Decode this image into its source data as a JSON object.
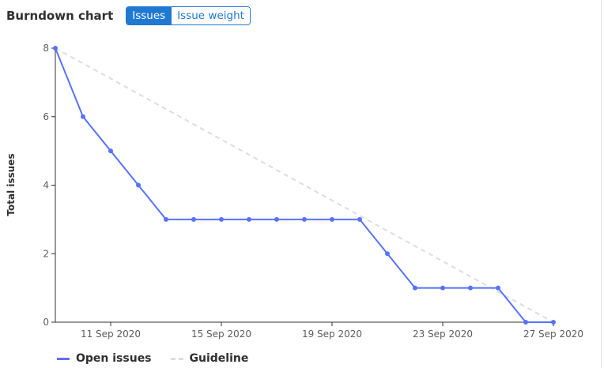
{
  "header": {
    "title": "Burndown chart",
    "toggle": [
      {
        "label": "Issues",
        "active": true
      },
      {
        "label": "Issue weight",
        "active": false
      }
    ]
  },
  "colors": {
    "series": "#5772ff",
    "guideline": "#dddddd",
    "accent": "#1f78d1"
  },
  "chart_data": {
    "type": "line",
    "ylabel": "Total issues",
    "ylim": [
      0,
      8
    ],
    "yticks": [
      0,
      2,
      4,
      6,
      8
    ],
    "xlim": [
      "2020-09-09",
      "2020-09-27"
    ],
    "xticks": [
      {
        "date": "2020-09-11",
        "label": "11 Sep 2020"
      },
      {
        "date": "2020-09-15",
        "label": "15 Sep 2020"
      },
      {
        "date": "2020-09-19",
        "label": "19 Sep 2020"
      },
      {
        "date": "2020-09-23",
        "label": "23 Sep 2020"
      },
      {
        "date": "2020-09-27",
        "label": "27 Sep 2020"
      }
    ],
    "legend_position": "bottom-left",
    "grid": false,
    "series": [
      {
        "name": "Open issues",
        "style": "solid",
        "points": [
          {
            "date": "2020-09-09",
            "y": 8
          },
          {
            "date": "2020-09-10",
            "y": 6
          },
          {
            "date": "2020-09-11",
            "y": 5
          },
          {
            "date": "2020-09-12",
            "y": 4
          },
          {
            "date": "2020-09-13",
            "y": 3
          },
          {
            "date": "2020-09-14",
            "y": 3
          },
          {
            "date": "2020-09-15",
            "y": 3
          },
          {
            "date": "2020-09-16",
            "y": 3
          },
          {
            "date": "2020-09-17",
            "y": 3
          },
          {
            "date": "2020-09-18",
            "y": 3
          },
          {
            "date": "2020-09-19",
            "y": 3
          },
          {
            "date": "2020-09-20",
            "y": 3
          },
          {
            "date": "2020-09-21",
            "y": 2
          },
          {
            "date": "2020-09-22",
            "y": 1
          },
          {
            "date": "2020-09-23",
            "y": 1
          },
          {
            "date": "2020-09-24",
            "y": 1
          },
          {
            "date": "2020-09-25",
            "y": 1
          },
          {
            "date": "2020-09-26",
            "y": 0
          },
          {
            "date": "2020-09-27",
            "y": 0
          }
        ]
      },
      {
        "name": "Guideline",
        "style": "dashed",
        "points": [
          {
            "date": "2020-09-09",
            "y": 8
          },
          {
            "date": "2020-09-27",
            "y": 0
          }
        ]
      }
    ]
  }
}
